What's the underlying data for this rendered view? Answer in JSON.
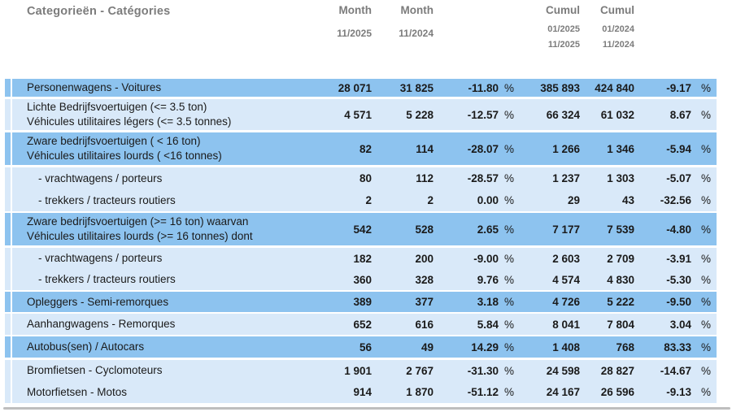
{
  "colors": {
    "row_medium": "#8dc3ef",
    "row_light": "#d9e9f9",
    "header_text": "#7c7c7c",
    "body_text": "#1a1a1a",
    "separator": "#b3b3b3"
  },
  "symbols": {
    "percent": "%"
  },
  "header": {
    "category_title": "Categorieën - Catégories",
    "columns": [
      {
        "title": "Month",
        "sub1": "11/2025"
      },
      {
        "title": "Month",
        "sub1": "11/2024"
      },
      {
        "title": "Cumul",
        "sub1": "01/2025",
        "sub2": "11/2025"
      },
      {
        "title": "Cumul",
        "sub1": "01/2024",
        "sub2": "11/2024"
      }
    ]
  },
  "rows": [
    {
      "label": "Personenwagens - Voitures",
      "month1": "28 071",
      "month2": "31 825",
      "pct_month": "-11.80",
      "cumul1": "385 893",
      "cumul2": "424 840",
      "pct_cumul": "-9.17"
    },
    {
      "label": "Lichte Bedrijfsvoertuigen (<= 3.5 ton)",
      "label2": "Véhicules utilitaires légers (<= 3.5 tonnes)",
      "month1": "4 571",
      "month2": "5 228",
      "pct_month": "-12.57",
      "cumul1": "66 324",
      "cumul2": "61 032",
      "pct_cumul": "8.67"
    },
    {
      "label": "Zware bedrijfsvoertuigen ( < 16 ton)",
      "label2": "Véhicules utilitaires lourds ( <16 tonnes)",
      "month1": "82",
      "month2": "114",
      "pct_month": "-28.07",
      "cumul1": "1 266",
      "cumul2": "1 346",
      "pct_cumul": "-5.94"
    },
    {
      "label": "- vrachtwagens / porteurs",
      "month1": "80",
      "month2": "112",
      "pct_month": "-28.57",
      "cumul1": "1 237",
      "cumul2": "1 303",
      "pct_cumul": "-5.07"
    },
    {
      "label": "- trekkers / tracteurs routiers",
      "month1": "2",
      "month2": "2",
      "pct_month": "0.00",
      "cumul1": "29",
      "cumul2": "43",
      "pct_cumul": "-32.56"
    },
    {
      "label": "Zware bedrijfsvoertuigen (>= 16 ton) waarvan",
      "label2": "Véhicules utilitaires lourds (>= 16 tonnes) dont",
      "month1": "542",
      "month2": "528",
      "pct_month": "2.65",
      "cumul1": "7 177",
      "cumul2": "7 539",
      "pct_cumul": "-4.80"
    },
    {
      "label": "- vrachtwagens / porteurs",
      "month1": "182",
      "month2": "200",
      "pct_month": "-9.00",
      "cumul1": "2 603",
      "cumul2": "2 709",
      "pct_cumul": "-3.91"
    },
    {
      "label": "- trekkers / tracteurs routiers",
      "month1": "360",
      "month2": "328",
      "pct_month": "9.76",
      "cumul1": "4 574",
      "cumul2": "4 830",
      "pct_cumul": "-5.30"
    },
    {
      "label": "Opleggers - Semi-remorques",
      "month1": "389",
      "month2": "377",
      "pct_month": "3.18",
      "cumul1": "4 726",
      "cumul2": "5 222",
      "pct_cumul": "-9.50"
    },
    {
      "label": "Aanhangwagens - Remorques",
      "month1": "652",
      "month2": "616",
      "pct_month": "5.84",
      "cumul1": "8 041",
      "cumul2": "7 804",
      "pct_cumul": "3.04"
    },
    {
      "label": "Autobus(sen) / Autocars",
      "month1": "56",
      "month2": "49",
      "pct_month": "14.29",
      "cumul1": "1 408",
      "cumul2": "768",
      "pct_cumul": "83.33"
    },
    {
      "label": "Bromfietsen - Cyclomoteurs",
      "month1": "1 901",
      "month2": "2 767",
      "pct_month": "-31.30",
      "cumul1": "24 598",
      "cumul2": "28 827",
      "pct_cumul": "-14.67"
    },
    {
      "label": "Motorfietsen - Motos",
      "month1": "914",
      "month2": "1 870",
      "pct_month": "-51.12",
      "cumul1": "24 167",
      "cumul2": "26 596",
      "pct_cumul": "-9.13"
    }
  ]
}
